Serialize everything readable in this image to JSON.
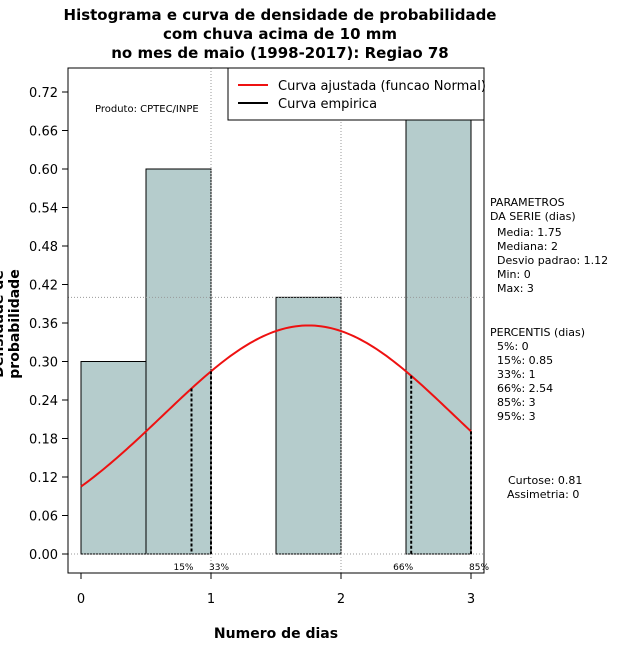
{
  "chart_data": {
    "type": "bar",
    "title_lines": [
      "Histograma e curva de densidade de probabilidade",
      "com chuva acima de 10 mm",
      "no mes de maio (1998-2017): Regiao 78"
    ],
    "xlabel": "Numero de dias",
    "ylabel": "Densidade de probabilidade",
    "xlim": [
      -0.1,
      3.1
    ],
    "ylim": [
      0,
      0.76
    ],
    "xticks": [
      0,
      1,
      2,
      3
    ],
    "yticks": [
      0.0,
      0.06,
      0.12,
      0.18,
      0.24,
      0.3,
      0.36,
      0.42,
      0.48,
      0.54,
      0.6,
      0.66,
      0.72
    ],
    "ytick_labels": [
      "0.00",
      "0.06",
      "0.12",
      "0.18",
      "0.24",
      "0.30",
      "0.36",
      "0.42",
      "0.48",
      "0.54",
      "0.60",
      "0.66",
      "0.72"
    ],
    "bars": [
      {
        "x0": 0.0,
        "x1": 0.5,
        "value": 0.3
      },
      {
        "x0": 0.5,
        "x1": 1.0,
        "value": 0.6
      },
      {
        "x0": 1.0,
        "x1": 1.5,
        "value": 0.0
      },
      {
        "x0": 1.5,
        "x1": 2.0,
        "value": 0.4
      },
      {
        "x0": 2.0,
        "x1": 2.5,
        "value": 0.0
      },
      {
        "x0": 2.5,
        "x1": 3.0,
        "value": 0.7
      }
    ],
    "bar_color": "#b5cccc",
    "normal_curve": {
      "mean": 1.75,
      "sd": 1.12,
      "color": "#ee1111",
      "x_range": [
        0,
        3
      ]
    },
    "reference_lines": [
      {
        "axis": "y",
        "value": 0.4
      },
      {
        "axis": "x",
        "value": 1.0
      },
      {
        "axis": "x",
        "value": 2.0
      }
    ],
    "percentile_markers": [
      {
        "x": 0.85,
        "label": "15%"
      },
      {
        "x": 1.0,
        "label": "33%"
      },
      {
        "x": 2.54,
        "label": "66%"
      },
      {
        "x": 3.0,
        "label": "85%"
      }
    ],
    "legend": {
      "position": "top-right",
      "entries": [
        {
          "label": "Curva ajustada (funcao Normal)",
          "color": "#ee1111"
        },
        {
          "label": "Curva empirica",
          "color": "#000000"
        }
      ]
    }
  },
  "credit": "Produto: CPTEC/INPE",
  "parametros": {
    "header": "PARAMETROS\nDA SERIE (dias)",
    "lines": [
      "  Media: 1.75",
      "  Mediana: 2",
      "  Desvio padrao: 1.12",
      "  Min: 0",
      "  Max: 3"
    ]
  },
  "percentis": {
    "header": "PERCENTIS (dias)",
    "lines": [
      "  5%: 0",
      "  15%: 0.85",
      "  33%: 1",
      "  66%: 2.54",
      "  85%: 3",
      "  95%: 3"
    ]
  },
  "shape": {
    "curtose": "Curtose: 0.81",
    "assimetria": "  Assimetria: 0"
  }
}
